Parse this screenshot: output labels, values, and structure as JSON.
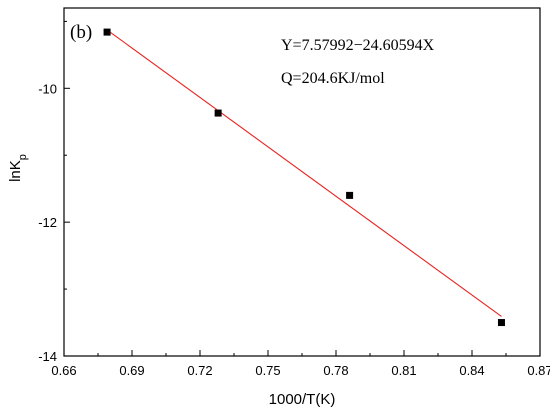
{
  "chart_data": {
    "type": "scatter",
    "panel_label": "(b)",
    "xlabel": "1000/T(K)",
    "ylabel_base": "lnK",
    "ylabel_sub": "p",
    "xlim": [
      0.66,
      0.87
    ],
    "ylim": [
      -14,
      -8.8
    ],
    "xticks": [
      0.66,
      0.69,
      0.72,
      0.75,
      0.78,
      0.81,
      0.84,
      0.87
    ],
    "yticks": [
      -14,
      -12,
      -10
    ],
    "xtick_labels": [
      "0.66",
      "0.69",
      "0.72",
      "0.75",
      "0.78",
      "0.81",
      "0.84",
      "0.87"
    ],
    "ytick_labels": [
      "-14",
      "-12",
      "-10"
    ],
    "grid": false,
    "series": [
      {
        "x": [
          0.679,
          0.728,
          0.786,
          0.853
        ],
        "y": [
          -9.16,
          -10.37,
          -11.6,
          -13.5
        ],
        "marker": "square",
        "color": "#000000"
      }
    ],
    "fit_line": {
      "x": [
        0.679,
        0.853
      ],
      "intercept": 7.57992,
      "slope": -24.60594,
      "color": "#e8231f"
    },
    "annotations": [
      "Y=7.57992−24.60594X",
      "Q=204.6KJ/mol"
    ]
  }
}
